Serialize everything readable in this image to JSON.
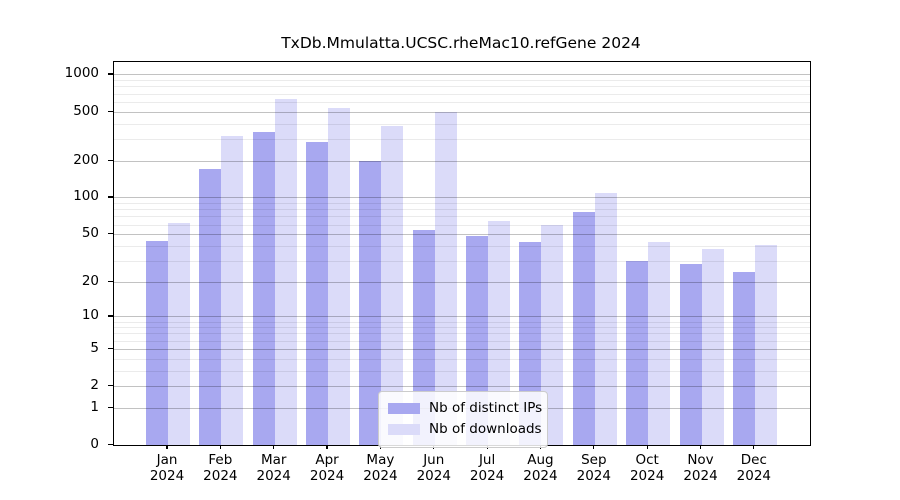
{
  "title": "TxDb.Mmulatta.UCSC.rheMac10.refGene 2024",
  "colors": {
    "ips": "#a8a8f0",
    "downloads": "#dbdbf9",
    "grid_major": "rgba(0,0,0,0.24)",
    "grid_minor": "rgba(0,0,0,0.08)"
  },
  "legend": {
    "items": [
      {
        "label": "Nb of distinct IPs",
        "color_key": "ips"
      },
      {
        "label": "Nb of downloads",
        "color_key": "downloads"
      }
    ]
  },
  "axes": {
    "y_tick_values": [
      0,
      1,
      2,
      5,
      10,
      20,
      50,
      100,
      200,
      500,
      1000
    ],
    "y_minor_values": [
      3,
      4,
      6,
      7,
      8,
      9,
      30,
      40,
      60,
      70,
      80,
      90,
      300,
      400,
      600,
      700,
      800,
      900
    ],
    "x_year": "2024"
  },
  "chart_data": {
    "type": "bar",
    "title": "TxDb.Mmulatta.UCSC.rheMac10.refGene 2024",
    "scale": "log1p",
    "grid": true,
    "legend_position": "inside-bottom-center",
    "categories": [
      "Jan 2024",
      "Feb 2024",
      "Mar 2024",
      "Apr 2024",
      "May 2024",
      "Jun 2024",
      "Jul 2024",
      "Aug 2024",
      "Sep 2024",
      "Oct 2024",
      "Nov 2024",
      "Dec 2024"
    ],
    "x_tick_labels": [
      "Jan",
      "Feb",
      "Mar",
      "Apr",
      "May",
      "Jun",
      "Jul",
      "Aug",
      "Sep",
      "Oct",
      "Nov",
      "Dec"
    ],
    "y_ticks": [
      0,
      1,
      2,
      5,
      10,
      20,
      50,
      100,
      200,
      500,
      1000
    ],
    "ylim": [
      0,
      1000
    ],
    "series": [
      {
        "name": "Nb of distinct IPs",
        "values": [
          44,
          170,
          341,
          283,
          197,
          54,
          48,
          43,
          76,
          30,
          28,
          24
        ]
      },
      {
        "name": "Nb of downloads",
        "values": [
          62,
          315,
          627,
          537,
          384,
          492,
          64,
          60,
          108,
          43,
          38,
          41
        ]
      }
    ]
  }
}
